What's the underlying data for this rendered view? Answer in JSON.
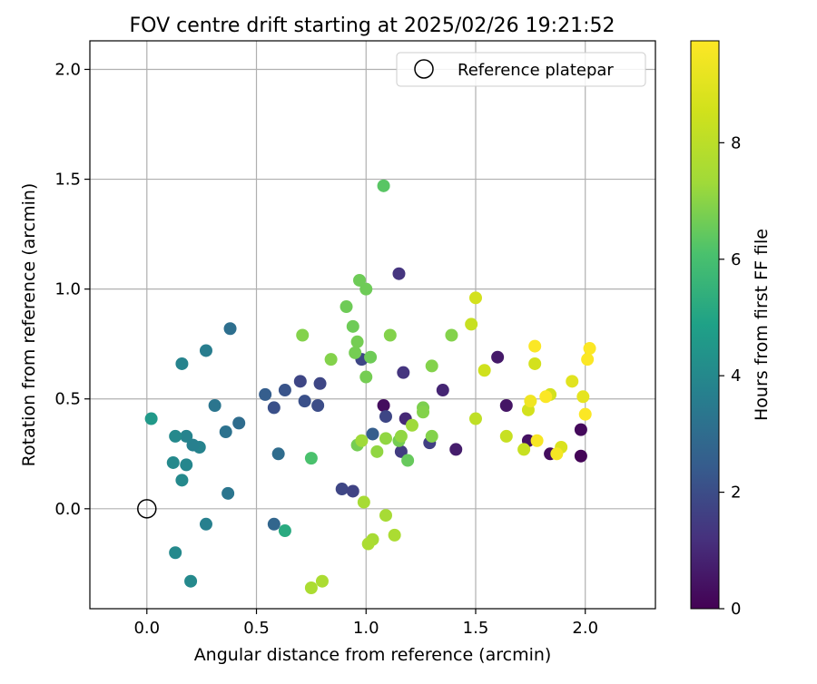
{
  "chart_data": {
    "type": "scatter",
    "title": "FOV centre drift starting at 2025/02/26 19:21:52",
    "xlabel": "Angular distance from reference (arcmin)",
    "ylabel": "Rotation from reference (arcmin)",
    "xlim": [
      -0.26,
      2.32
    ],
    "ylim": [
      -0.455,
      2.13
    ],
    "xticks": [
      0.0,
      0.5,
      1.0,
      1.5,
      2.0
    ],
    "xtick_labels": [
      "0.0",
      "0.5",
      "1.0",
      "1.5",
      "2.0"
    ],
    "yticks": [
      0.0,
      0.5,
      1.0,
      1.5,
      2.0
    ],
    "ytick_labels": [
      "0.0",
      "0.5",
      "1.0",
      "1.5",
      "2.0"
    ],
    "grid": true,
    "legend": {
      "position": "top-right",
      "entries": [
        "Reference platepar"
      ]
    },
    "colorbar": {
      "label": "Hours from first FF file",
      "colormap": "viridis",
      "min": 0,
      "max": 9.75,
      "ticks": [
        0,
        2,
        4,
        6,
        8
      ],
      "tick_labels": [
        "0",
        "2",
        "4",
        "6",
        "8"
      ]
    },
    "reference_point": {
      "x": 0.0,
      "y": 0.0
    },
    "points": [
      {
        "x": 1.08,
        "y": 0.47,
        "hours": 0.3
      },
      {
        "x": 1.98,
        "y": 0.24,
        "hours": 0.1
      },
      {
        "x": 1.98,
        "y": 0.36,
        "hours": 0.2
      },
      {
        "x": 1.84,
        "y": 0.25,
        "hours": 0.3
      },
      {
        "x": 1.74,
        "y": 0.31,
        "hours": 0.4
      },
      {
        "x": 1.64,
        "y": 0.47,
        "hours": 0.5
      },
      {
        "x": 1.6,
        "y": 0.69,
        "hours": 0.6
      },
      {
        "x": 1.41,
        "y": 0.27,
        "hours": 0.7
      },
      {
        "x": 1.35,
        "y": 0.54,
        "hours": 0.9
      },
      {
        "x": 1.18,
        "y": 0.41,
        "hours": 1.0
      },
      {
        "x": 1.15,
        "y": 1.07,
        "hours": 1.3
      },
      {
        "x": 1.17,
        "y": 0.62,
        "hours": 1.3
      },
      {
        "x": 1.16,
        "y": 0.26,
        "hours": 1.5
      },
      {
        "x": 1.29,
        "y": 0.3,
        "hours": 1.6
      },
      {
        "x": 0.98,
        "y": 0.68,
        "hours": 1.8
      },
      {
        "x": 1.09,
        "y": 0.42,
        "hours": 1.8
      },
      {
        "x": 0.89,
        "y": 0.09,
        "hours": 1.8
      },
      {
        "x": 0.94,
        "y": 0.08,
        "hours": 1.7
      },
      {
        "x": 0.7,
        "y": 0.58,
        "hours": 1.8
      },
      {
        "x": 0.79,
        "y": 0.57,
        "hours": 1.8
      },
      {
        "x": 0.78,
        "y": 0.47,
        "hours": 2.0
      },
      {
        "x": 0.72,
        "y": 0.49,
        "hours": 2.1
      },
      {
        "x": 0.58,
        "y": 0.46,
        "hours": 2.1
      },
      {
        "x": 0.63,
        "y": 0.54,
        "hours": 2.2
      },
      {
        "x": 0.54,
        "y": 0.52,
        "hours": 2.5
      },
      {
        "x": 1.03,
        "y": 0.34,
        "hours": 2.5
      },
      {
        "x": 0.58,
        "y": -0.07,
        "hours": 2.8
      },
      {
        "x": 0.6,
        "y": 0.25,
        "hours": 3.0
      },
      {
        "x": 0.42,
        "y": 0.39,
        "hours": 3.0
      },
      {
        "x": 0.38,
        "y": 0.82,
        "hours": 3.1
      },
      {
        "x": 0.36,
        "y": 0.35,
        "hours": 3.2
      },
      {
        "x": 0.37,
        "y": 0.07,
        "hours": 3.3
      },
      {
        "x": 0.31,
        "y": 0.47,
        "hours": 3.3
      },
      {
        "x": 0.27,
        "y": 0.72,
        "hours": 3.6
      },
      {
        "x": 0.27,
        "y": -0.07,
        "hours": 3.7
      },
      {
        "x": 0.24,
        "y": 0.28,
        "hours": 3.8
      },
      {
        "x": 0.21,
        "y": 0.29,
        "hours": 3.7
      },
      {
        "x": 0.18,
        "y": 0.33,
        "hours": 3.8
      },
      {
        "x": 0.18,
        "y": 0.2,
        "hours": 3.9
      },
      {
        "x": 0.16,
        "y": 0.66,
        "hours": 3.8
      },
      {
        "x": 0.16,
        "y": 0.13,
        "hours": 4.0
      },
      {
        "x": 0.13,
        "y": 0.33,
        "hours": 4.0
      },
      {
        "x": 0.12,
        "y": 0.21,
        "hours": 4.0
      },
      {
        "x": 0.13,
        "y": -0.2,
        "hours": 4.0
      },
      {
        "x": 0.2,
        "y": -0.33,
        "hours": 4.0
      },
      {
        "x": 0.02,
        "y": 0.41,
        "hours": 4.6
      },
      {
        "x": 0.63,
        "y": -0.1,
        "hours": 5.2
      },
      {
        "x": 0.75,
        "y": 0.23,
        "hours": 6.1
      },
      {
        "x": 1.08,
        "y": 1.47,
        "hours": 6.3
      },
      {
        "x": 1.19,
        "y": 0.22,
        "hours": 6.5
      },
      {
        "x": 0.91,
        "y": 0.92,
        "hours": 6.6
      },
      {
        "x": 0.97,
        "y": 1.04,
        "hours": 6.6
      },
      {
        "x": 1.0,
        "y": 1.0,
        "hours": 6.6
      },
      {
        "x": 0.94,
        "y": 0.83,
        "hours": 6.6
      },
      {
        "x": 0.96,
        "y": 0.76,
        "hours": 6.7
      },
      {
        "x": 0.95,
        "y": 0.71,
        "hours": 6.7
      },
      {
        "x": 1.02,
        "y": 0.69,
        "hours": 6.6
      },
      {
        "x": 1.0,
        "y": 0.6,
        "hours": 6.7
      },
      {
        "x": 0.96,
        "y": 0.29,
        "hours": 6.7
      },
      {
        "x": 1.15,
        "y": 0.31,
        "hours": 6.7
      },
      {
        "x": 1.26,
        "y": 0.46,
        "hours": 6.8
      },
      {
        "x": 1.26,
        "y": 0.44,
        "hours": 6.9
      },
      {
        "x": 1.3,
        "y": 0.33,
        "hours": 6.9
      },
      {
        "x": 1.3,
        "y": 0.65,
        "hours": 6.9
      },
      {
        "x": 1.39,
        "y": 0.79,
        "hours": 6.9
      },
      {
        "x": 0.84,
        "y": 0.68,
        "hours": 6.9
      },
      {
        "x": 0.71,
        "y": 0.79,
        "hours": 6.9
      },
      {
        "x": 1.11,
        "y": 0.79,
        "hours": 6.9
      },
      {
        "x": 1.09,
        "y": 0.32,
        "hours": 7.1
      },
      {
        "x": 1.16,
        "y": 0.33,
        "hours": 7.1
      },
      {
        "x": 1.05,
        "y": 0.26,
        "hours": 7.1
      },
      {
        "x": 1.21,
        "y": 0.38,
        "hours": 7.3
      },
      {
        "x": 0.98,
        "y": 0.31,
        "hours": 7.3
      },
      {
        "x": 0.99,
        "y": 0.03,
        "hours": 7.5
      },
      {
        "x": 1.09,
        "y": -0.03,
        "hours": 7.5
      },
      {
        "x": 1.13,
        "y": -0.12,
        "hours": 7.6
      },
      {
        "x": 1.03,
        "y": -0.14,
        "hours": 7.5
      },
      {
        "x": 1.01,
        "y": -0.16,
        "hours": 7.6
      },
      {
        "x": 0.8,
        "y": -0.33,
        "hours": 7.6
      },
      {
        "x": 0.75,
        "y": -0.36,
        "hours": 7.6
      },
      {
        "x": 1.5,
        "y": 0.41,
        "hours": 8.1
      },
      {
        "x": 1.48,
        "y": 0.84,
        "hours": 8.3
      },
      {
        "x": 1.5,
        "y": 0.96,
        "hours": 8.6
      },
      {
        "x": 1.54,
        "y": 0.63,
        "hours": 8.5
      },
      {
        "x": 1.64,
        "y": 0.33,
        "hours": 8.3
      },
      {
        "x": 1.72,
        "y": 0.27,
        "hours": 8.3
      },
      {
        "x": 1.74,
        "y": 0.45,
        "hours": 8.6
      },
      {
        "x": 1.77,
        "y": 0.66,
        "hours": 8.6
      },
      {
        "x": 1.84,
        "y": 0.52,
        "hours": 8.6
      },
      {
        "x": 1.89,
        "y": 0.28,
        "hours": 8.8
      },
      {
        "x": 1.94,
        "y": 0.58,
        "hours": 9.0
      },
      {
        "x": 1.99,
        "y": 0.51,
        "hours": 9.1
      },
      {
        "x": 1.75,
        "y": 0.49,
        "hours": 9.4
      },
      {
        "x": 1.78,
        "y": 0.31,
        "hours": 9.6
      },
      {
        "x": 1.87,
        "y": 0.25,
        "hours": 9.5
      },
      {
        "x": 1.82,
        "y": 0.51,
        "hours": 9.7
      },
      {
        "x": 1.77,
        "y": 0.74,
        "hours": 9.7
      },
      {
        "x": 2.0,
        "y": 0.43,
        "hours": 9.7
      },
      {
        "x": 2.01,
        "y": 0.68,
        "hours": 9.7
      },
      {
        "x": 2.02,
        "y": 0.73,
        "hours": 9.7
      }
    ]
  }
}
